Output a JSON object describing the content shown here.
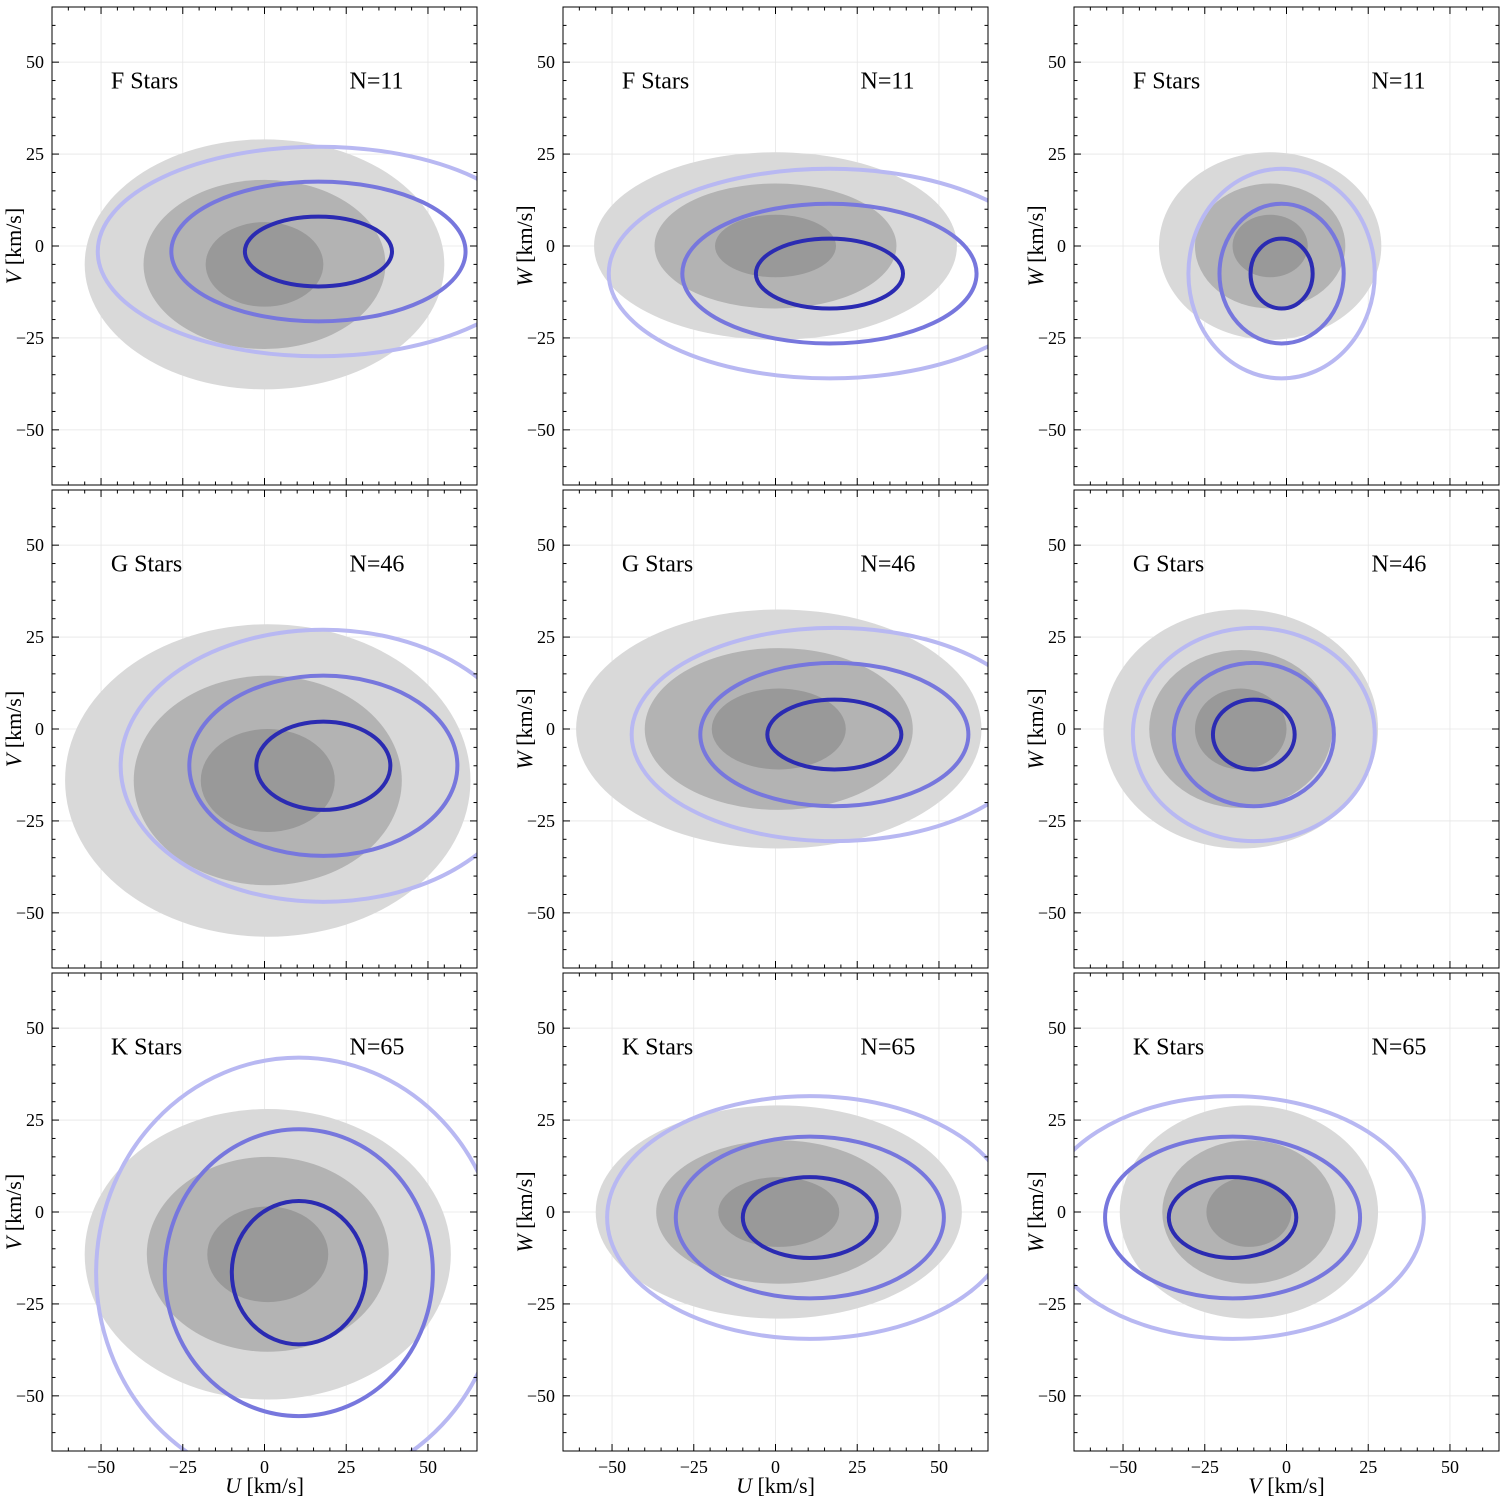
{
  "figure": {
    "colors": {
      "sigma1_fill": "#999999",
      "sigma2_fill": "#b3b3b3",
      "sigma3_fill": "#d9d9d9",
      "ring1": "#2b2bb2",
      "ring2": "#7777dd",
      "ring3": "#b8b8f2"
    }
  },
  "chart_data": [
    {
      "type": "scatter",
      "xlabel": "",
      "ylabel": "V [km/s]",
      "xlim": [
        -65,
        65
      ],
      "ylim": [
        -65,
        65
      ],
      "xticks": [
        "−50",
        "−25",
        "0",
        "25",
        "50"
      ],
      "yticks": [
        "−50",
        "−25",
        "0",
        "25",
        "50"
      ],
      "annotation": "F Stars",
      "count": "N=11",
      "reference_ellipses": [
        {
          "cx": 0,
          "cy": -5,
          "rx": 18,
          "ry": 11.5
        },
        {
          "cx": 0,
          "cy": -5,
          "rx": 37,
          "ry": 23
        },
        {
          "cx": 0,
          "cy": -5,
          "rx": 55,
          "ry": 34
        }
      ],
      "sample_ellipses": [
        {
          "cx": 16.5,
          "cy": -1.5,
          "rx": 22.5,
          "ry": 9.5
        },
        {
          "cx": 16.5,
          "cy": -1.5,
          "rx": 45,
          "ry": 19
        },
        {
          "cx": 16.5,
          "cy": -1.5,
          "rx": 67.5,
          "ry": 28.5
        }
      ]
    },
    {
      "type": "scatter",
      "xlabel": "",
      "ylabel": "W [km/s]",
      "xlim": [
        -65,
        65
      ],
      "ylim": [
        -65,
        65
      ],
      "xticks": [
        "−50",
        "−25",
        "0",
        "25",
        "50"
      ],
      "yticks": [
        "−50",
        "−25",
        "0",
        "25",
        "50"
      ],
      "annotation": "F Stars",
      "count": "N=11",
      "reference_ellipses": [
        {
          "cx": 0,
          "cy": 0,
          "rx": 18.5,
          "ry": 8.5
        },
        {
          "cx": 0,
          "cy": 0,
          "rx": 37,
          "ry": 17
        },
        {
          "cx": 0,
          "cy": 0,
          "rx": 55.5,
          "ry": 25.5
        }
      ],
      "sample_ellipses": [
        {
          "cx": 16.5,
          "cy": -7.5,
          "rx": 22.5,
          "ry": 9.5
        },
        {
          "cx": 16.5,
          "cy": -7.5,
          "rx": 45,
          "ry": 19
        },
        {
          "cx": 16.5,
          "cy": -7.5,
          "rx": 67.5,
          "ry": 28.5
        }
      ]
    },
    {
      "type": "scatter",
      "xlabel": "",
      "ylabel": "W [km/s]",
      "xlim": [
        -65,
        65
      ],
      "ylim": [
        -65,
        65
      ],
      "xticks": [
        "−50",
        "−25",
        "0",
        "25",
        "50"
      ],
      "yticks": [
        "−50",
        "−25",
        "0",
        "25",
        "50"
      ],
      "annotation": "F Stars",
      "count": "N=11",
      "reference_ellipses": [
        {
          "cx": -5,
          "cy": 0,
          "rx": 11.5,
          "ry": 8.5
        },
        {
          "cx": -5,
          "cy": 0,
          "rx": 23,
          "ry": 17
        },
        {
          "cx": -5,
          "cy": 0,
          "rx": 34,
          "ry": 25.5
        }
      ],
      "sample_ellipses": [
        {
          "cx": -1.5,
          "cy": -7.5,
          "rx": 9.5,
          "ry": 9.5
        },
        {
          "cx": -1.5,
          "cy": -7.5,
          "rx": 19,
          "ry": 19
        },
        {
          "cx": -1.5,
          "cy": -7.5,
          "rx": 28.5,
          "ry": 28.5
        }
      ]
    },
    {
      "type": "scatter",
      "xlabel": "",
      "ylabel": "V [km/s]",
      "xlim": [
        -65,
        65
      ],
      "ylim": [
        -65,
        65
      ],
      "xticks": [
        "−50",
        "−25",
        "0",
        "25",
        "50"
      ],
      "yticks": [
        "−50",
        "−25",
        "0",
        "25",
        "50"
      ],
      "annotation": "G Stars",
      "count": "N=46",
      "reference_ellipses": [
        {
          "cx": 1,
          "cy": -14,
          "rx": 20.5,
          "ry": 14
        },
        {
          "cx": 1,
          "cy": -14,
          "rx": 41,
          "ry": 28.5
        },
        {
          "cx": 1,
          "cy": -14,
          "rx": 62,
          "ry": 42.5
        }
      ],
      "sample_ellipses": [
        {
          "cx": 18,
          "cy": -10,
          "rx": 20.5,
          "ry": 12
        },
        {
          "cx": 18,
          "cy": -10,
          "rx": 41,
          "ry": 24.5
        },
        {
          "cx": 18,
          "cy": -10,
          "rx": 62,
          "ry": 37
        }
      ]
    },
    {
      "type": "scatter",
      "xlabel": "",
      "ylabel": "W [km/s]",
      "xlim": [
        -65,
        65
      ],
      "ylim": [
        -65,
        65
      ],
      "xticks": [
        "−50",
        "−25",
        "0",
        "25",
        "50"
      ],
      "yticks": [
        "−50",
        "−25",
        "0",
        "25",
        "50"
      ],
      "annotation": "G Stars",
      "count": "N=46",
      "reference_ellipses": [
        {
          "cx": 1,
          "cy": 0,
          "rx": 20.5,
          "ry": 11
        },
        {
          "cx": 1,
          "cy": 0,
          "rx": 41,
          "ry": 22
        },
        {
          "cx": 1,
          "cy": 0,
          "rx": 62,
          "ry": 32.5
        }
      ],
      "sample_ellipses": [
        {
          "cx": 18,
          "cy": -1.5,
          "rx": 20.5,
          "ry": 9.5
        },
        {
          "cx": 18,
          "cy": -1.5,
          "rx": 41,
          "ry": 19.5
        },
        {
          "cx": 18,
          "cy": -1.5,
          "rx": 62,
          "ry": 29
        }
      ]
    },
    {
      "type": "scatter",
      "xlabel": "",
      "ylabel": "W [km/s]",
      "xlim": [
        -65,
        65
      ],
      "ylim": [
        -65,
        65
      ],
      "xticks": [
        "−50",
        "−25",
        "0",
        "25",
        "50"
      ],
      "yticks": [
        "−50",
        "−25",
        "0",
        "25",
        "50"
      ],
      "annotation": "G Stars",
      "count": "N=46",
      "reference_ellipses": [
        {
          "cx": -14,
          "cy": 0,
          "rx": 14,
          "ry": 11
        },
        {
          "cx": -14,
          "cy": 0,
          "rx": 28,
          "ry": 21.5
        },
        {
          "cx": -14,
          "cy": 0,
          "rx": 42,
          "ry": 32.5
        }
      ],
      "sample_ellipses": [
        {
          "cx": -10,
          "cy": -1.5,
          "rx": 12.5,
          "ry": 9.5
        },
        {
          "cx": -10,
          "cy": -1.5,
          "rx": 24.5,
          "ry": 19.5
        },
        {
          "cx": -10,
          "cy": -1.5,
          "rx": 37,
          "ry": 29
        }
      ]
    },
    {
      "type": "scatter",
      "xlabel": "U [km/s]",
      "ylabel": "V [km/s]",
      "xlim": [
        -65,
        65
      ],
      "ylim": [
        -65,
        65
      ],
      "xticks": [
        "−50",
        "−25",
        "0",
        "25",
        "50"
      ],
      "yticks": [
        "−50",
        "−25",
        "0",
        "25",
        "50"
      ],
      "annotation": "K Stars",
      "count": "N=65",
      "reference_ellipses": [
        {
          "cx": 1,
          "cy": -11.5,
          "rx": 18.5,
          "ry": 13
        },
        {
          "cx": 1,
          "cy": -11.5,
          "rx": 37,
          "ry": 26.5
        },
        {
          "cx": 1,
          "cy": -11.5,
          "rx": 56,
          "ry": 39.5
        }
      ],
      "sample_ellipses": [
        {
          "cx": 10.5,
          "cy": -16.5,
          "rx": 20.5,
          "ry": 19.5
        },
        {
          "cx": 10.5,
          "cy": -16.5,
          "rx": 41,
          "ry": 39
        },
        {
          "cx": 10.5,
          "cy": -16.5,
          "rx": 62,
          "ry": 58.5
        }
      ]
    },
    {
      "type": "scatter",
      "xlabel": "U [km/s]",
      "ylabel": "W [km/s]",
      "xlim": [
        -65,
        65
      ],
      "ylim": [
        -65,
        65
      ],
      "xticks": [
        "−50",
        "−25",
        "0",
        "25",
        "50"
      ],
      "yticks": [
        "−50",
        "−25",
        "0",
        "25",
        "50"
      ],
      "annotation": "K Stars",
      "count": "N=65",
      "reference_ellipses": [
        {
          "cx": 1,
          "cy": 0,
          "rx": 18.5,
          "ry": 9.5
        },
        {
          "cx": 1,
          "cy": 0,
          "rx": 37.5,
          "ry": 19.5
        },
        {
          "cx": 1,
          "cy": 0,
          "rx": 56,
          "ry": 29
        }
      ],
      "sample_ellipses": [
        {
          "cx": 10.5,
          "cy": -1.5,
          "rx": 20.5,
          "ry": 11
        },
        {
          "cx": 10.5,
          "cy": -1.5,
          "rx": 41,
          "ry": 22
        },
        {
          "cx": 10.5,
          "cy": -1.5,
          "rx": 62,
          "ry": 33
        }
      ]
    },
    {
      "type": "scatter",
      "xlabel": "V [km/s]",
      "ylabel": "W [km/s]",
      "xlim": [
        -65,
        65
      ],
      "ylim": [
        -65,
        65
      ],
      "xticks": [
        "−50",
        "−25",
        "0",
        "25",
        "50"
      ],
      "yticks": [
        "−50",
        "−25",
        "0",
        "25",
        "50"
      ],
      "annotation": "K Stars",
      "count": "N=65",
      "reference_ellipses": [
        {
          "cx": -11.5,
          "cy": 0,
          "rx": 13,
          "ry": 9.5
        },
        {
          "cx": -11.5,
          "cy": 0,
          "rx": 26.5,
          "ry": 19.5
        },
        {
          "cx": -11.5,
          "cy": 0,
          "rx": 39.5,
          "ry": 29
        }
      ],
      "sample_ellipses": [
        {
          "cx": -16.5,
          "cy": -1.5,
          "rx": 19.5,
          "ry": 11
        },
        {
          "cx": -16.5,
          "cy": -1.5,
          "rx": 39,
          "ry": 22
        },
        {
          "cx": -16.5,
          "cy": -1.5,
          "rx": 58.5,
          "ry": 33
        }
      ]
    }
  ]
}
